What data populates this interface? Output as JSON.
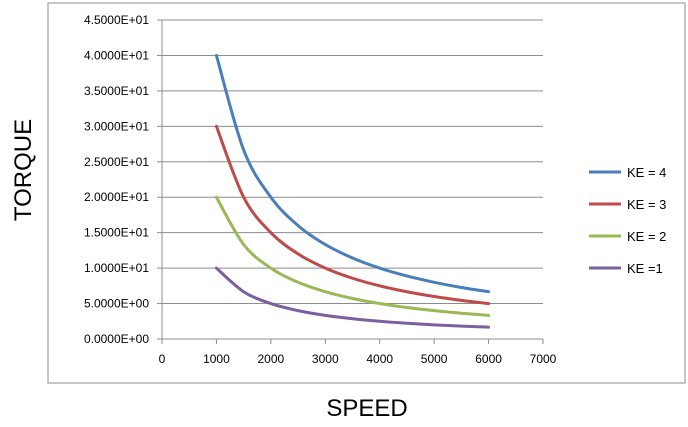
{
  "chart_data": {
    "type": "line",
    "xlabel": "SPEED",
    "ylabel": "TORQUE",
    "xlim": [
      0,
      7000
    ],
    "ylim": [
      0,
      45
    ],
    "x_ticks": [
      "0",
      "1000",
      "2000",
      "3000",
      "4000",
      "5000",
      "6000",
      "7000"
    ],
    "y_ticks": [
      "0.0000E+00",
      "5.0000E+00",
      "1.0000E+01",
      "1.5000E+01",
      "2.0000E+01",
      "2.5000E+01",
      "3.0000E+01",
      "3.5000E+01",
      "4.0000E+01",
      "4.5000E+01"
    ],
    "grid": "horizontal",
    "legend_position": "right",
    "x": [
      1000,
      1500,
      2000,
      2500,
      3000,
      3500,
      4000,
      4500,
      5000,
      5500,
      6000
    ],
    "series": [
      {
        "name": "KE = 4",
        "color": "#4a7ebb",
        "values": [
          40,
          26.67,
          20,
          16,
          13.33,
          11.43,
          10,
          8.89,
          8,
          7.27,
          6.67
        ]
      },
      {
        "name": "KE = 3",
        "color": "#be4b48",
        "values": [
          30,
          20,
          15,
          12,
          10,
          8.57,
          7.5,
          6.67,
          6,
          5.45,
          5
        ]
      },
      {
        "name": "KE = 2",
        "color": "#98b954",
        "values": [
          20,
          13.33,
          10,
          8,
          6.67,
          5.71,
          5,
          4.44,
          4,
          3.64,
          3.33
        ]
      },
      {
        "name": "KE =1",
        "color": "#7d5fa0",
        "values": [
          10,
          6.67,
          5,
          4,
          3.33,
          2.86,
          2.5,
          2.22,
          2,
          1.82,
          1.67
        ]
      }
    ]
  }
}
